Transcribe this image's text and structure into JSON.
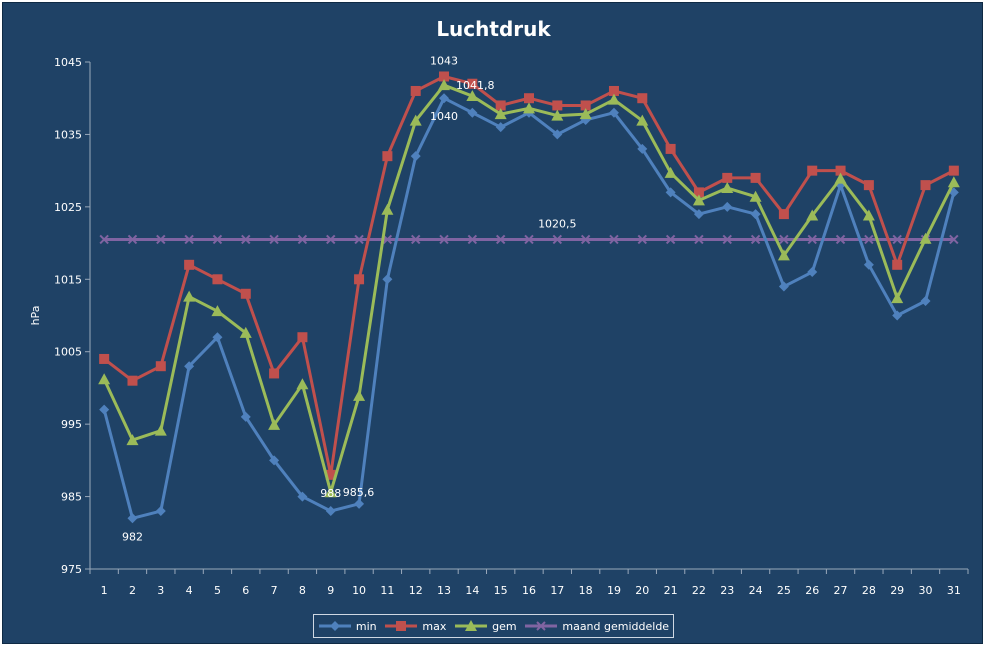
{
  "chart_data": {
    "type": "line",
    "title": "Luchtdruk",
    "xlabel": "",
    "ylabel": "hPa",
    "x": [
      1,
      2,
      3,
      4,
      5,
      6,
      7,
      8,
      9,
      10,
      11,
      12,
      13,
      14,
      15,
      16,
      17,
      18,
      19,
      20,
      21,
      22,
      23,
      24,
      25,
      26,
      27,
      28,
      29,
      30,
      31
    ],
    "ylim": [
      975,
      1045
    ],
    "yticks": [
      975,
      985,
      995,
      1005,
      1015,
      1025,
      1035,
      1045
    ],
    "grid": false,
    "legend_position": "bottom",
    "series": [
      {
        "name": "min",
        "color": "#4f81bd",
        "marker": "diamond",
        "values": [
          997,
          982,
          983,
          1003,
          1007,
          996,
          990,
          985,
          983,
          984,
          1015,
          1032,
          1040,
          1038,
          1036,
          1038,
          1035,
          1037,
          1038,
          1033,
          1027,
          1024,
          1025,
          1024,
          1014,
          1016,
          1028,
          1017,
          1010,
          1012,
          1027
        ]
      },
      {
        "name": "max",
        "color": "#c0504d",
        "marker": "square",
        "values": [
          1004,
          1001,
          1003,
          1017,
          1015,
          1013,
          1002,
          1007,
          988,
          1015,
          1032,
          1041,
          1043,
          1042,
          1039,
          1040,
          1039,
          1039,
          1041,
          1040,
          1033,
          1027,
          1029,
          1029,
          1024,
          1030,
          1030,
          1028,
          1017,
          1028,
          1030
        ]
      },
      {
        "name": "gem",
        "color": "#9bbb59",
        "marker": "triangle",
        "values": [
          1001.2,
          992.8,
          994.1,
          1012.6,
          1010.6,
          1007.6,
          994.9,
          1000.5,
          985.6,
          998.9,
          1024.6,
          1036.9,
          1041.8,
          1040.3,
          1037.8,
          1038.6,
          1037.6,
          1037.8,
          1039.8,
          1036.9,
          1029.7,
          1025.9,
          1027.6,
          1026.4,
          1018.3,
          1023.8,
          1028.9,
          1023.8,
          1012.4,
          1020.6,
          1028.4
        ]
      },
      {
        "name": "maand gemiddelde",
        "color": "#8064a2",
        "marker": "x",
        "values": [
          1020.5,
          1020.5,
          1020.5,
          1020.5,
          1020.5,
          1020.5,
          1020.5,
          1020.5,
          1020.5,
          1020.5,
          1020.5,
          1020.5,
          1020.5,
          1020.5,
          1020.5,
          1020.5,
          1020.5,
          1020.5,
          1020.5,
          1020.5,
          1020.5,
          1020.5,
          1020.5,
          1020.5,
          1020.5,
          1020.5,
          1020.5,
          1020.5,
          1020.5,
          1020.5,
          1020.5
        ]
      }
    ],
    "annotations": [
      {
        "text": "1043",
        "series": "max",
        "x": 13,
        "y": 1043,
        "placement": "above"
      },
      {
        "text": "1041,8",
        "series": "gem",
        "x": 13,
        "y": 1041.8,
        "placement": "right"
      },
      {
        "text": "1040",
        "series": "min",
        "x": 13,
        "y": 1040,
        "placement": "below"
      },
      {
        "text": "988",
        "series": "max",
        "x": 9,
        "y": 988,
        "placement": "below"
      },
      {
        "text": "985,6",
        "series": "gem",
        "x": 9,
        "y": 985.6,
        "placement": "right"
      },
      {
        "text": "982",
        "series": "min",
        "x": 2,
        "y": 982,
        "placement": "below"
      },
      {
        "text": "1020,5",
        "series": "maand gemiddelde",
        "x": 17,
        "y": 1020.5,
        "placement": "above"
      }
    ]
  }
}
